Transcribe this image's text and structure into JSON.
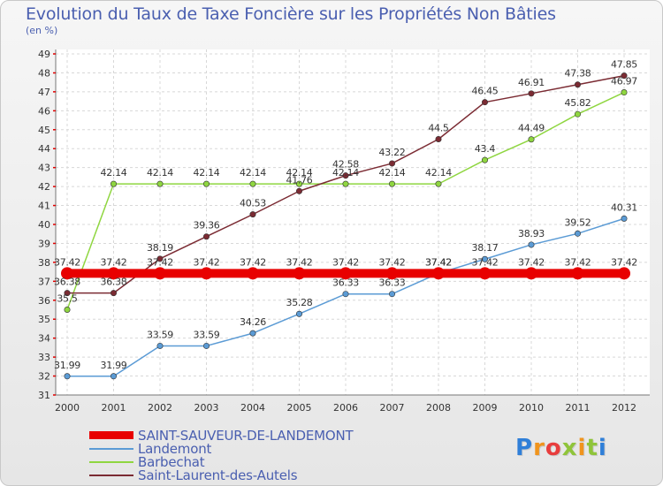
{
  "page": {
    "title": "Evolution du Taux de Taxe Foncière sur les Propriétés Non Bâties",
    "unit": "(en %)"
  },
  "logo": {
    "letters": [
      {
        "ch": "P",
        "color": "#2f7fd8"
      },
      {
        "ch": "r",
        "color": "#f0941d"
      },
      {
        "ch": "o",
        "color": "#e83d3d"
      },
      {
        "ch": "x",
        "color": "#8fc43a"
      },
      {
        "ch": "i",
        "color": "#f0941d"
      },
      {
        "ch": "t",
        "color": "#8fc43a"
      },
      {
        "ch": "i",
        "color": "#2f7fd8"
      }
    ]
  },
  "chart_data": {
    "type": "line",
    "x": [
      "2000",
      "2001",
      "2002",
      "2003",
      "2004",
      "2005",
      "2006",
      "2007",
      "2008",
      "2009",
      "2010",
      "2011",
      "2012"
    ],
    "ylim": [
      31,
      49
    ],
    "yticks": [
      31,
      32,
      33,
      34,
      35,
      36,
      37,
      38,
      39,
      40,
      41,
      42,
      43,
      44,
      45,
      46,
      47,
      48,
      49
    ],
    "grid": true,
    "legend_position": "bottom-left",
    "series": [
      {
        "name": "SAINT-SAUVEUR-DE-LANDEMONT",
        "color": "#e80000",
        "values": [
          37.42,
          37.42,
          37.42,
          37.42,
          37.42,
          37.42,
          37.42,
          37.42,
          37.42,
          37.42,
          37.42,
          37.42,
          37.42
        ],
        "labels": [
          "37.42",
          "37.42",
          "37.42",
          "37.42",
          "37.42",
          "37.42",
          "37.42",
          "37.42",
          "37.42",
          "37.42",
          "37.42",
          "37.42",
          "37.42"
        ]
      },
      {
        "name": "Landemont",
        "color": "#5b9bd5",
        "values": [
          31.99,
          31.99,
          33.59,
          33.59,
          34.26,
          35.28,
          36.33,
          36.33,
          37.42,
          38.17,
          38.93,
          39.52,
          40.31
        ],
        "labels": [
          "31.99",
          "31.99",
          "33.59",
          "33.59",
          "34.26",
          "35.28",
          "36.33",
          "36.33",
          "37.42",
          "38.17",
          "38.93",
          "39.52",
          "40.31"
        ]
      },
      {
        "name": "Barbechat",
        "color": "#8fd640",
        "values": [
          35.5,
          42.14,
          42.14,
          42.14,
          42.14,
          42.14,
          42.14,
          42.14,
          42.14,
          43.4,
          44.49,
          45.82,
          46.97
        ],
        "labels": [
          "35.5",
          "42.14",
          "42.14",
          "42.14",
          "42.14",
          "42.14",
          "42.14",
          "42.14",
          "42.14",
          "43.4",
          "44.49",
          "45.82",
          "46.97"
        ]
      },
      {
        "name": "Saint-Laurent-des-Autels",
        "color": "#7b2b33",
        "values": [
          36.38,
          36.38,
          38.19,
          39.36,
          40.53,
          41.76,
          42.58,
          43.22,
          44.5,
          46.45,
          46.91,
          47.38,
          47.85
        ],
        "labels": [
          "36.38",
          "36.38",
          "38.19",
          "39.36",
          "40.53",
          "41.76",
          "42.58",
          "43.22",
          "44.5",
          "46.45",
          "46.91",
          "47.38",
          "47.85"
        ]
      }
    ]
  }
}
